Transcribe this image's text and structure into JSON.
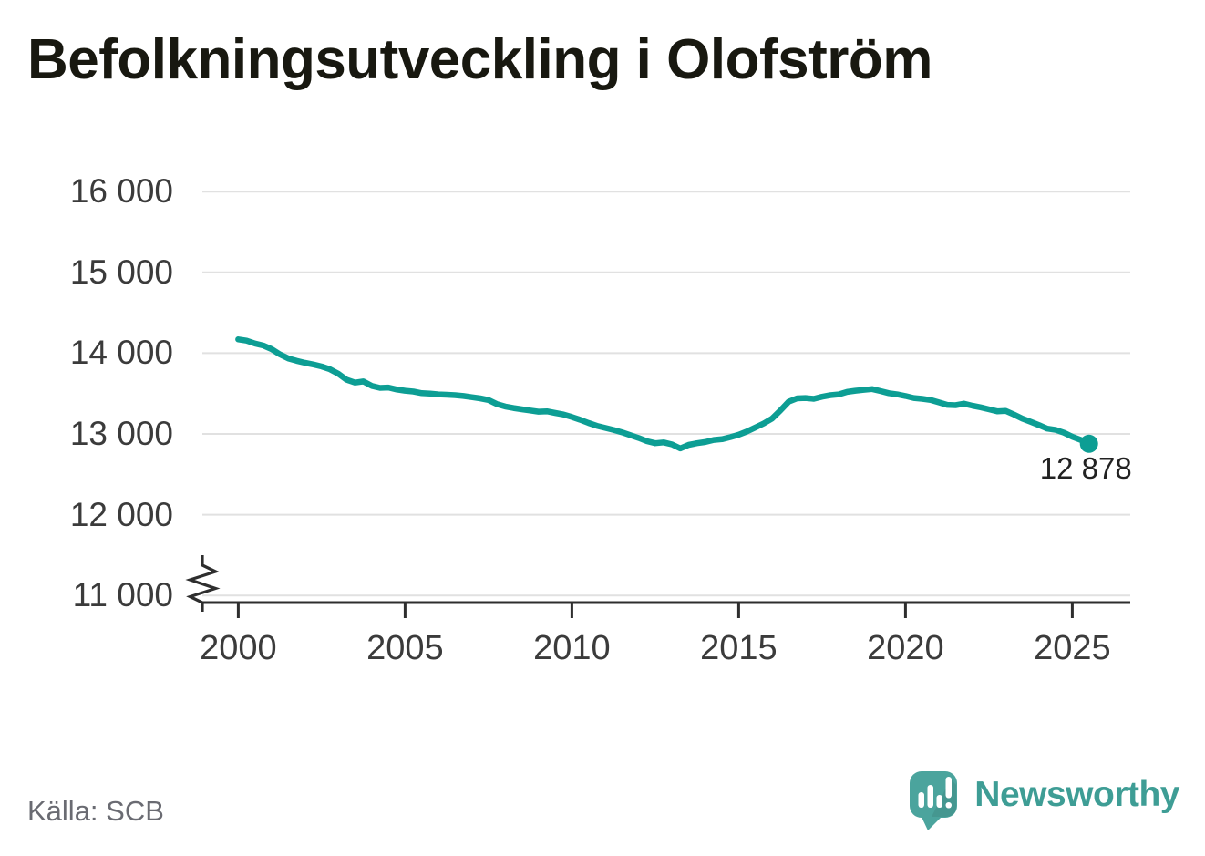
{
  "title": "Befolkningsutveckling i Olofström",
  "source": {
    "label": "Källa: SCB"
  },
  "branding": {
    "name": "Newsworthy",
    "logo_icon": "speech-bubble-bar-chart-exclamation"
  },
  "colors": {
    "line": "#0d9e94",
    "grid": "#e1e1e1",
    "axis": "#2e2e2e",
    "axis_text": "#3b3b3b",
    "title_text": "#181810",
    "source_text": "#6a6b72",
    "end_label_text": "#222222",
    "brand_bubble": "#4ba49d",
    "brand_text": "#3e9d95",
    "background": "#ffffff"
  },
  "chart_data": {
    "type": "line",
    "title": "Befolkningsutveckling i Olofström",
    "xlabel": "",
    "ylabel": "",
    "grid": "horizontal",
    "legend": "none",
    "axis_break_at_bottom": true,
    "xlim": [
      1998.9,
      2026.75
    ],
    "ylim": [
      11000,
      16400
    ],
    "xticks": [
      {
        "value": 2000,
        "label": "2000"
      },
      {
        "value": 2005,
        "label": "2005"
      },
      {
        "value": 2010,
        "label": "2010"
      },
      {
        "value": 2015,
        "label": "2015"
      },
      {
        "value": 2020,
        "label": "2020"
      },
      {
        "value": 2025,
        "label": "2025"
      }
    ],
    "yticks": [
      {
        "value": 11000,
        "label": "11 000"
      },
      {
        "value": 12000,
        "label": "12 000"
      },
      {
        "value": 13000,
        "label": "13 000"
      },
      {
        "value": 14000,
        "label": "14 000"
      },
      {
        "value": 15000,
        "label": "15 000"
      },
      {
        "value": 16000,
        "label": "16 000"
      }
    ],
    "series": [
      {
        "name": "Befolkning i Olofström",
        "points": [
          [
            2000,
            14170
          ],
          [
            2000.25,
            14155
          ],
          [
            2000.5,
            14120
          ],
          [
            2000.75,
            14095
          ],
          [
            2001,
            14050
          ],
          [
            2001.25,
            13985
          ],
          [
            2001.5,
            13935
          ],
          [
            2001.75,
            13905
          ],
          [
            2002,
            13880
          ],
          [
            2002.25,
            13860
          ],
          [
            2002.5,
            13835
          ],
          [
            2002.75,
            13800
          ],
          [
            2003,
            13745
          ],
          [
            2003.25,
            13670
          ],
          [
            2003.5,
            13635
          ],
          [
            2003.75,
            13650
          ],
          [
            2004,
            13595
          ],
          [
            2004.25,
            13570
          ],
          [
            2004.5,
            13575
          ],
          [
            2004.75,
            13550
          ],
          [
            2005,
            13535
          ],
          [
            2005.25,
            13525
          ],
          [
            2005.5,
            13505
          ],
          [
            2005.75,
            13500
          ],
          [
            2006,
            13490
          ],
          [
            2006.25,
            13485
          ],
          [
            2006.5,
            13480
          ],
          [
            2006.75,
            13470
          ],
          [
            2007,
            13455
          ],
          [
            2007.25,
            13440
          ],
          [
            2007.5,
            13420
          ],
          [
            2007.75,
            13370
          ],
          [
            2008,
            13340
          ],
          [
            2008.25,
            13320
          ],
          [
            2008.5,
            13305
          ],
          [
            2008.75,
            13290
          ],
          [
            2009,
            13275
          ],
          [
            2009.25,
            13280
          ],
          [
            2009.5,
            13260
          ],
          [
            2009.75,
            13240
          ],
          [
            2010,
            13210
          ],
          [
            2010.25,
            13175
          ],
          [
            2010.5,
            13135
          ],
          [
            2010.75,
            13100
          ],
          [
            2011,
            13075
          ],
          [
            2011.25,
            13050
          ],
          [
            2011.5,
            13020
          ],
          [
            2011.75,
            12985
          ],
          [
            2012,
            12950
          ],
          [
            2012.25,
            12910
          ],
          [
            2012.5,
            12885
          ],
          [
            2012.75,
            12895
          ],
          [
            2013,
            12870
          ],
          [
            2013.25,
            12820
          ],
          [
            2013.5,
            12865
          ],
          [
            2013.75,
            12885
          ],
          [
            2014,
            12900
          ],
          [
            2014.25,
            12925
          ],
          [
            2014.5,
            12935
          ],
          [
            2014.75,
            12960
          ],
          [
            2015,
            12990
          ],
          [
            2015.25,
            13030
          ],
          [
            2015.5,
            13080
          ],
          [
            2015.75,
            13130
          ],
          [
            2016,
            13190
          ],
          [
            2016.25,
            13290
          ],
          [
            2016.5,
            13400
          ],
          [
            2016.75,
            13440
          ],
          [
            2017,
            13445
          ],
          [
            2017.25,
            13435
          ],
          [
            2017.5,
            13460
          ],
          [
            2017.75,
            13480
          ],
          [
            2018,
            13490
          ],
          [
            2018.25,
            13520
          ],
          [
            2018.5,
            13535
          ],
          [
            2018.75,
            13545
          ],
          [
            2019,
            13555
          ],
          [
            2019.25,
            13530
          ],
          [
            2019.5,
            13505
          ],
          [
            2019.75,
            13490
          ],
          [
            2020,
            13470
          ],
          [
            2020.25,
            13445
          ],
          [
            2020.5,
            13435
          ],
          [
            2020.75,
            13420
          ],
          [
            2021,
            13390
          ],
          [
            2021.25,
            13360
          ],
          [
            2021.5,
            13355
          ],
          [
            2021.75,
            13375
          ],
          [
            2022,
            13350
          ],
          [
            2022.25,
            13330
          ],
          [
            2022.5,
            13305
          ],
          [
            2022.75,
            13280
          ],
          [
            2023,
            13285
          ],
          [
            2023.25,
            13240
          ],
          [
            2023.5,
            13190
          ],
          [
            2023.75,
            13150
          ],
          [
            2024,
            13110
          ],
          [
            2024.25,
            13065
          ],
          [
            2024.5,
            13050
          ],
          [
            2024.75,
            13015
          ],
          [
            2025,
            12965
          ],
          [
            2025.25,
            12925
          ],
          [
            2025.5,
            12878
          ]
        ]
      }
    ],
    "end_annotation": {
      "label": "12 878",
      "value": 12878,
      "x": 2025.5
    }
  }
}
